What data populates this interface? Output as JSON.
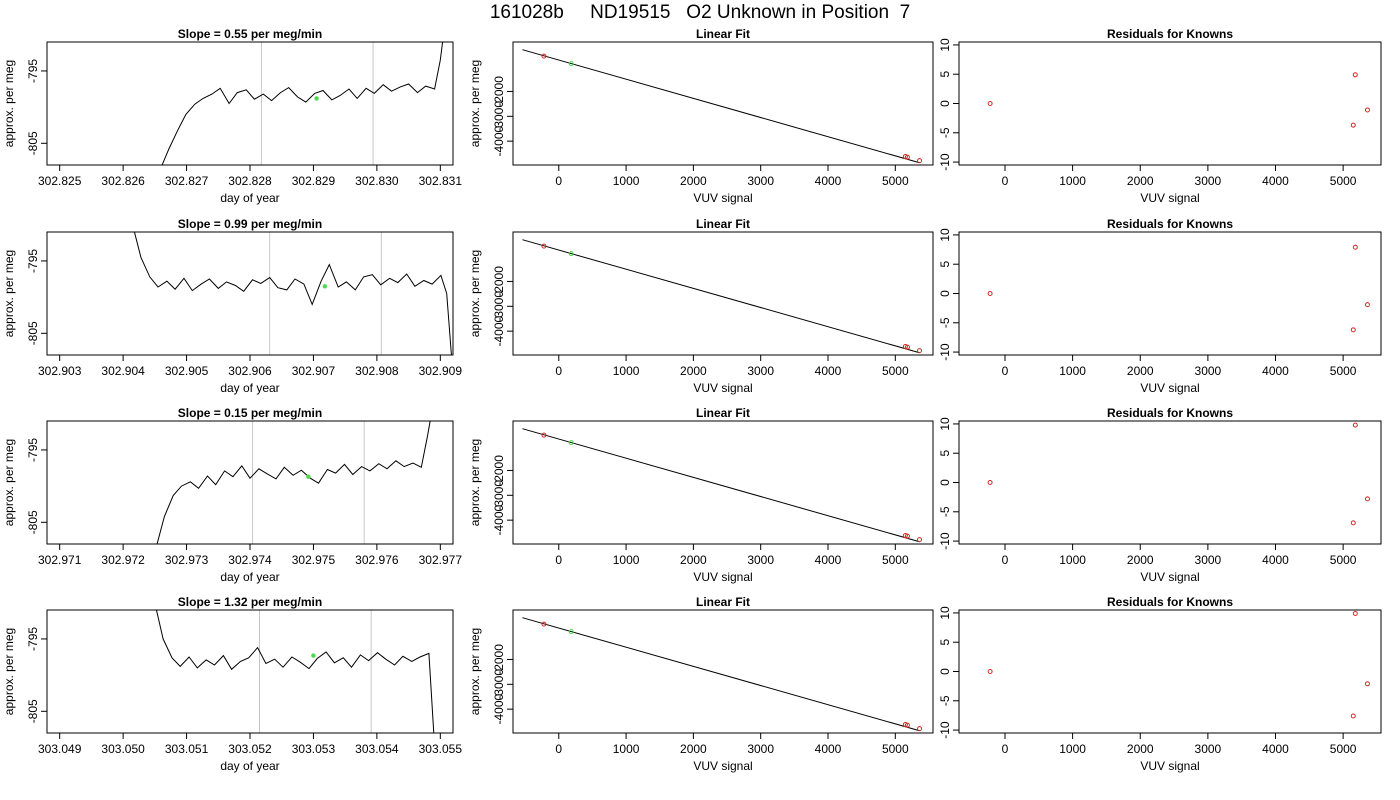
{
  "title": "161028b     ND19515   O2 Unknown in Position  7",
  "colors": {
    "trace": "#000000",
    "marker": "#4dd84d",
    "known": "#d62828",
    "vline": "#c8c8c8"
  },
  "chart_data": [
    {
      "type": "line",
      "title": "Slope =  0.55  per meg/min",
      "xlabel": "day of year",
      "ylabel": "approx. per meg",
      "xticks": [
        "302.825",
        "302.826",
        "302.827",
        "302.828",
        "302.829",
        "302.830",
        "302.831"
      ],
      "yticks": [
        "-795",
        "-805"
      ],
      "xlim": [
        302.8248,
        302.8312
      ],
      "ylim": [
        -808,
        -791
      ],
      "vlines": [
        302.82818,
        302.82994
      ],
      "marker": {
        "x": 302.82905,
        "y": -798.8
      },
      "x": [
        302.82659,
        302.82672,
        302.82686,
        302.82699,
        302.82713,
        302.82726,
        302.8274,
        302.82753,
        302.82767,
        302.8278,
        302.82794,
        302.82807,
        302.82821,
        302.82834,
        302.82848,
        302.82861,
        302.82875,
        302.82888,
        302.82902,
        302.82915,
        302.82929,
        302.82942,
        302.82956,
        302.82969,
        302.82983,
        302.82996,
        302.8301,
        302.83023,
        302.83037,
        302.8305,
        302.83064,
        302.83077,
        302.83091,
        302.831,
        302.83105
      ],
      "y": [
        -808.5,
        -805.8,
        -803.2,
        -801.0,
        -799.6,
        -798.8,
        -798.2,
        -797.4,
        -799.5,
        -798.0,
        -797.6,
        -798.9,
        -798.2,
        -799.1,
        -798.0,
        -797.3,
        -798.6,
        -799.3,
        -798.1,
        -797.7,
        -799.0,
        -798.4,
        -797.5,
        -798.8,
        -797.4,
        -798.1,
        -796.9,
        -797.8,
        -797.2,
        -796.8,
        -798.0,
        -797.1,
        -797.5,
        -793.5,
        -790.0
      ]
    },
    {
      "type": "scatter",
      "title": "Linear Fit",
      "xlabel": "VUV signal",
      "ylabel": "approx. per meg",
      "xticks": [
        "0",
        "1000",
        "2000",
        "3000",
        "4000",
        "5000"
      ],
      "yticks": [
        "-2000",
        "-3000",
        "-4000"
      ],
      "xlim": [
        -680,
        5560
      ],
      "ylim": [
        -4960,
        -10
      ],
      "line": {
        "x": [
          -540,
          5360
        ],
        "y": [
          -320,
          -4870
        ]
      },
      "knowns": {
        "x": [
          -220,
          5150,
          5180,
          5360
        ],
        "y": [
          -580,
          -4620,
          -4645,
          -4785
        ]
      },
      "unknown": {
        "x": [
          185
        ],
        "y": [
          -880
        ]
      }
    },
    {
      "type": "scatter",
      "title": "Residuals for Knowns",
      "xlabel": "VUV signal",
      "ylabel": "",
      "xticks": [
        "0",
        "1000",
        "2000",
        "3000",
        "4000",
        "5000"
      ],
      "yticks": [
        "10",
        "5",
        "0",
        "-5",
        "-10"
      ],
      "xlim": [
        -680,
        5560
      ],
      "ylim": [
        -10.5,
        10.5
      ],
      "x": [
        -220,
        5150,
        5180,
        5360
      ],
      "y": [
        0.0,
        -3.7,
        4.9,
        -1.1
      ]
    },
    {
      "type": "line",
      "title": "Slope =  0.99  per meg/min",
      "xlabel": "day of year",
      "ylabel": "approx. per meg",
      "xticks": [
        "302.903",
        "302.904",
        "302.905",
        "302.906",
        "302.907",
        "302.908",
        "302.909"
      ],
      "yticks": [
        "-795",
        "-805"
      ],
      "xlim": [
        302.9028,
        302.9092
      ],
      "ylim": [
        -808,
        -791
      ],
      "vlines": [
        302.90631,
        302.90807
      ],
      "marker": {
        "x": 302.90718,
        "y": -798.5
      },
      "x": [
        302.90415,
        302.90428,
        302.90442,
        302.90455,
        302.90469,
        302.90482,
        302.90496,
        302.90509,
        302.90523,
        302.90536,
        302.9055,
        302.90563,
        302.90577,
        302.9059,
        302.90604,
        302.90617,
        302.90631,
        302.90644,
        302.90658,
        302.90671,
        302.90685,
        302.90698,
        302.90712,
        302.90725,
        302.90739,
        302.90752,
        302.90766,
        302.90779,
        302.90793,
        302.90806,
        302.9082,
        302.90833,
        302.90847,
        302.9086,
        302.90874,
        302.90887,
        302.90901,
        302.9091,
        302.90918
      ],
      "y": [
        -790.0,
        -794.5,
        -797.2,
        -798.6,
        -797.8,
        -798.9,
        -797.4,
        -799.1,
        -798.2,
        -797.5,
        -798.8,
        -797.9,
        -798.4,
        -799.2,
        -797.6,
        -798.1,
        -797.3,
        -798.7,
        -799.0,
        -797.5,
        -798.2,
        -801.0,
        -797.8,
        -795.5,
        -798.6,
        -797.9,
        -799.0,
        -797.2,
        -796.9,
        -798.3,
        -797.4,
        -798.0,
        -796.8,
        -798.5,
        -797.7,
        -798.2,
        -797.0,
        -799.5,
        -808.5
      ]
    },
    {
      "type": "scatter",
      "title": "Linear Fit",
      "xlabel": "VUV signal",
      "ylabel": "approx. per meg",
      "xticks": [
        "0",
        "1000",
        "2000",
        "3000",
        "4000",
        "5000"
      ],
      "yticks": [
        "-2000",
        "-3000",
        "-4000"
      ],
      "xlim": [
        -680,
        5560
      ],
      "ylim": [
        -4960,
        -10
      ],
      "line": {
        "x": [
          -540,
          5360
        ],
        "y": [
          -320,
          -4870
        ]
      },
      "knowns": {
        "x": [
          -220,
          5150,
          5180,
          5360
        ],
        "y": [
          -580,
          -4620,
          -4645,
          -4785
        ]
      },
      "unknown": {
        "x": [
          185
        ],
        "y": [
          -880
        ]
      }
    },
    {
      "type": "scatter",
      "title": "Residuals for Knowns",
      "xlabel": "VUV signal",
      "ylabel": "",
      "xticks": [
        "0",
        "1000",
        "2000",
        "3000",
        "4000",
        "5000"
      ],
      "yticks": [
        "10",
        "5",
        "0",
        "-5",
        "-10"
      ],
      "xlim": [
        -680,
        5560
      ],
      "ylim": [
        -10.5,
        10.5
      ],
      "x": [
        -220,
        5150,
        5180,
        5360
      ],
      "y": [
        0.0,
        -6.2,
        7.9,
        -1.9
      ]
    },
    {
      "type": "line",
      "title": "Slope =  0.15  per meg/min",
      "xlabel": "day of year",
      "ylabel": "approx. per meg",
      "xticks": [
        "302.971",
        "302.972",
        "302.973",
        "302.974",
        "302.975",
        "302.976",
        "302.977"
      ],
      "yticks": [
        "-795",
        "-805"
      ],
      "xlim": [
        302.9708,
        302.9772
      ],
      "ylim": [
        -808,
        -791
      ],
      "vlines": [
        302.97404,
        302.9758
      ],
      "marker": {
        "x": 302.97492,
        "y": -798.7
      },
      "x": [
        302.97252,
        302.97265,
        302.97279,
        302.97292,
        302.97306,
        302.97319,
        302.97333,
        302.97346,
        302.9736,
        302.97373,
        302.97387,
        302.974,
        302.97414,
        302.97427,
        302.97441,
        302.97454,
        302.97468,
        302.97481,
        302.97495,
        302.97508,
        302.97522,
        302.97535,
        302.97549,
        302.97562,
        302.97576,
        302.97589,
        302.97603,
        302.97616,
        302.9763,
        302.97643,
        302.97657,
        302.9767,
        302.9768,
        302.97686
      ],
      "y": [
        -808.5,
        -804.2,
        -801.3,
        -800.0,
        -799.4,
        -800.3,
        -798.6,
        -799.8,
        -797.9,
        -798.7,
        -797.2,
        -798.9,
        -797.6,
        -798.3,
        -799.0,
        -797.4,
        -798.5,
        -797.8,
        -798.9,
        -799.6,
        -797.7,
        -798.2,
        -797.0,
        -798.4,
        -797.3,
        -797.9,
        -796.9,
        -797.6,
        -796.5,
        -797.3,
        -796.8,
        -797.4,
        -793.0,
        -790.0
      ]
    },
    {
      "type": "scatter",
      "title": "Linear Fit",
      "xlabel": "VUV signal",
      "ylabel": "approx. per meg",
      "xticks": [
        "0",
        "1000",
        "2000",
        "3000",
        "4000",
        "5000"
      ],
      "yticks": [
        "-2000",
        "-3000",
        "-4000"
      ],
      "xlim": [
        -680,
        5560
      ],
      "ylim": [
        -4960,
        -10
      ],
      "line": {
        "x": [
          -540,
          5360
        ],
        "y": [
          -320,
          -4870
        ]
      },
      "knowns": {
        "x": [
          -220,
          5150,
          5180,
          5360
        ],
        "y": [
          -580,
          -4620,
          -4645,
          -4785
        ]
      },
      "unknown": {
        "x": [
          185
        ],
        "y": [
          -880
        ]
      }
    },
    {
      "type": "scatter",
      "title": "Residuals for Knowns",
      "xlabel": "VUV signal",
      "ylabel": "",
      "xticks": [
        "0",
        "1000",
        "2000",
        "3000",
        "4000",
        "5000"
      ],
      "yticks": [
        "10",
        "5",
        "0",
        "-5",
        "-10"
      ],
      "xlim": [
        -680,
        5560
      ],
      "ylim": [
        -10.5,
        10.5
      ],
      "x": [
        -220,
        5150,
        5180,
        5360
      ],
      "y": [
        0.0,
        -6.9,
        9.8,
        -2.8
      ]
    },
    {
      "type": "line",
      "title": "Slope =  1.32  per meg/min",
      "xlabel": "day of year",
      "ylabel": "approx. per meg",
      "xticks": [
        "303.049",
        "303.050",
        "303.051",
        "303.052",
        "303.053",
        "303.054",
        "303.055"
      ],
      "yticks": [
        "-795",
        "-805"
      ],
      "xlim": [
        303.0488,
        303.0552
      ],
      "ylim": [
        -808,
        -791
      ],
      "vlines": [
        303.05215,
        303.05391
      ],
      "marker": {
        "x": 303.053,
        "y": -797.3
      },
      "x": [
        303.0505,
        303.05063,
        303.05077,
        303.0509,
        303.05104,
        303.05117,
        303.05131,
        303.05144,
        303.05158,
        303.05171,
        303.05185,
        303.05198,
        303.05212,
        303.05225,
        303.05239,
        303.05252,
        303.05266,
        303.05279,
        303.05293,
        303.05306,
        303.0532,
        303.05333,
        303.05347,
        303.0536,
        303.05374,
        303.05387,
        303.05401,
        303.05414,
        303.05428,
        303.05441,
        303.05455,
        303.05468,
        303.05482,
        303.0549
      ],
      "y": [
        -790.0,
        -795.0,
        -797.6,
        -798.8,
        -797.5,
        -799.0,
        -797.9,
        -798.6,
        -797.3,
        -799.2,
        -798.1,
        -797.6,
        -796.2,
        -798.4,
        -797.8,
        -798.9,
        -797.5,
        -798.2,
        -799.1,
        -797.7,
        -796.8,
        -798.3,
        -797.6,
        -798.9,
        -797.2,
        -798.0,
        -796.9,
        -797.8,
        -798.6,
        -797.4,
        -798.1,
        -797.5,
        -797.0,
        -808.5
      ]
    },
    {
      "type": "scatter",
      "title": "Linear Fit",
      "xlabel": "VUV signal",
      "ylabel": "approx. per meg",
      "xticks": [
        "0",
        "1000",
        "2000",
        "3000",
        "4000",
        "5000"
      ],
      "yticks": [
        "-2000",
        "-3000",
        "-4000"
      ],
      "xlim": [
        -680,
        5560
      ],
      "ylim": [
        -4960,
        -10
      ],
      "line": {
        "x": [
          -540,
          5360
        ],
        "y": [
          -320,
          -4870
        ]
      },
      "knowns": {
        "x": [
          -220,
          5150,
          5180,
          5360
        ],
        "y": [
          -580,
          -4620,
          -4645,
          -4785
        ]
      },
      "unknown": {
        "x": [
          185
        ],
        "y": [
          -880
        ]
      }
    },
    {
      "type": "scatter",
      "title": "Residuals for Knowns",
      "xlabel": "VUV signal",
      "ylabel": "",
      "xticks": [
        "0",
        "1000",
        "2000",
        "3000",
        "4000",
        "5000"
      ],
      "yticks": [
        "10",
        "5",
        "0",
        "-5",
        "-10"
      ],
      "xlim": [
        -680,
        5560
      ],
      "ylim": [
        -10.5,
        10.5
      ],
      "x": [
        -220,
        5150,
        5180,
        5360
      ],
      "y": [
        0.0,
        -7.6,
        9.9,
        -2.1
      ]
    }
  ]
}
